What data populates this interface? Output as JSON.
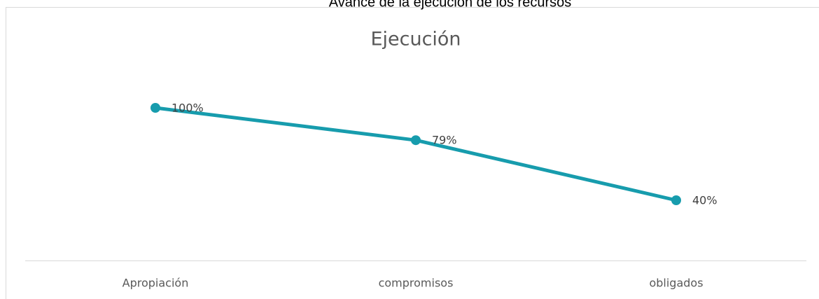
{
  "header": "Avance de la ejecución de los recursos",
  "chart_data": {
    "type": "line",
    "title": "Ejecución",
    "categories": [
      "Apropiación",
      "compromisos",
      "obligados"
    ],
    "values": [
      100,
      79,
      40
    ],
    "value_labels": [
      "100%",
      "79%",
      "40%"
    ],
    "color": "#179cad"
  }
}
